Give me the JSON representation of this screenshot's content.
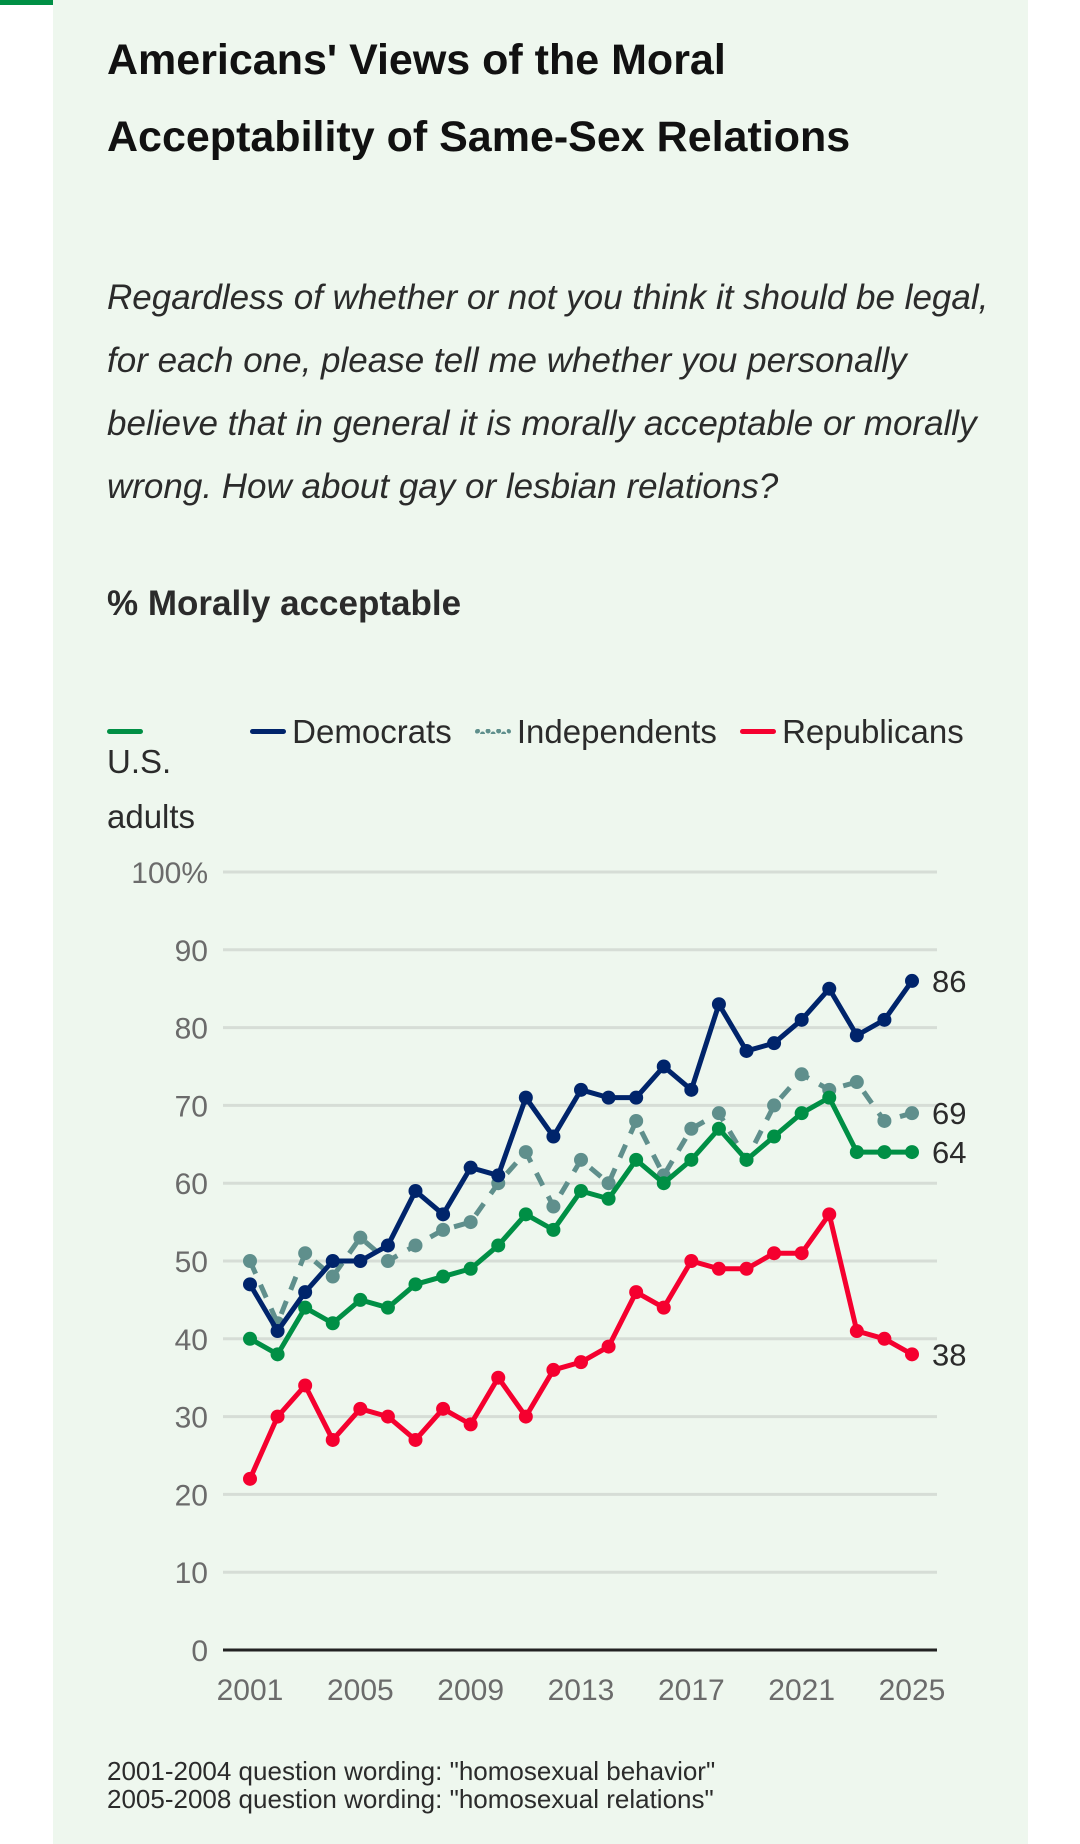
{
  "header": {
    "title": "Americans' Views of the Moral Acceptability of Same-Sex Relations",
    "question": "Regardless of whether or not you think it should be legal, for each one, please tell me whether you personally believe that in general it is morally acceptable or morally wrong. How about gay or lesbian relations?",
    "measure": "% Morally acceptable"
  },
  "colors": {
    "accent": "#008f45",
    "panel": "#eef7ee"
  },
  "footnotes": [
    "2001-2004 question wording: \"homosexual behavior\"",
    "2005-2008 question wording: \"homosexual relations\""
  ],
  "chart_data": {
    "type": "line",
    "title": "Americans' Views of the Moral Acceptability of Same-Sex Relations",
    "ylabel": "% Morally acceptable",
    "ylim": [
      0,
      100
    ],
    "yticks": [
      0,
      10,
      20,
      30,
      40,
      50,
      60,
      70,
      80,
      90,
      100
    ],
    "ytick_labels": [
      "0",
      "10",
      "20",
      "30",
      "40",
      "50",
      "60",
      "70",
      "80",
      "90",
      "100%"
    ],
    "xticks": [
      "2001",
      "2005",
      "2009",
      "2013",
      "2017",
      "2021",
      "2025"
    ],
    "legend_position": "top",
    "grid": true,
    "x": [
      2001,
      2002,
      2003,
      2004,
      2005,
      2006,
      2007,
      2008,
      2009,
      2010,
      2011,
      2012,
      2013,
      2014,
      2015,
      2016,
      2017,
      2018,
      2019,
      2020,
      2021,
      2022,
      2023,
      2024,
      2025
    ],
    "series": [
      {
        "name": "U.S. adults",
        "color": "#008f45",
        "dashed": false,
        "end_label": "64",
        "values": [
          40,
          38,
          44,
          42,
          45,
          44,
          47,
          48,
          49,
          52,
          56,
          54,
          59,
          58,
          63,
          60,
          63,
          67,
          63,
          66,
          69,
          71,
          64,
          64,
          64
        ]
      },
      {
        "name": "Democrats",
        "color": "#00246b",
        "dashed": false,
        "end_label": "86",
        "values": [
          47,
          41,
          46,
          50,
          50,
          52,
          59,
          56,
          62,
          61,
          71,
          66,
          72,
          71,
          71,
          75,
          72,
          83,
          77,
          78,
          81,
          85,
          79,
          81,
          86
        ]
      },
      {
        "name": "Independents",
        "color": "#5f8f8c",
        "dashed": true,
        "end_label": "69",
        "values": [
          50,
          42,
          51,
          48,
          53,
          50,
          52,
          54,
          55,
          60,
          64,
          57,
          63,
          60,
          68,
          61,
          67,
          69,
          63,
          70,
          74,
          72,
          73,
          68,
          69
        ]
      },
      {
        "name": "Republicans",
        "color": "#f5002f",
        "dashed": false,
        "end_label": "38",
        "values": [
          22,
          30,
          34,
          27,
          31,
          30,
          27,
          31,
          29,
          35,
          30,
          36,
          37,
          39,
          46,
          44,
          50,
          49,
          49,
          51,
          51,
          56,
          41,
          40,
          38
        ]
      }
    ]
  }
}
